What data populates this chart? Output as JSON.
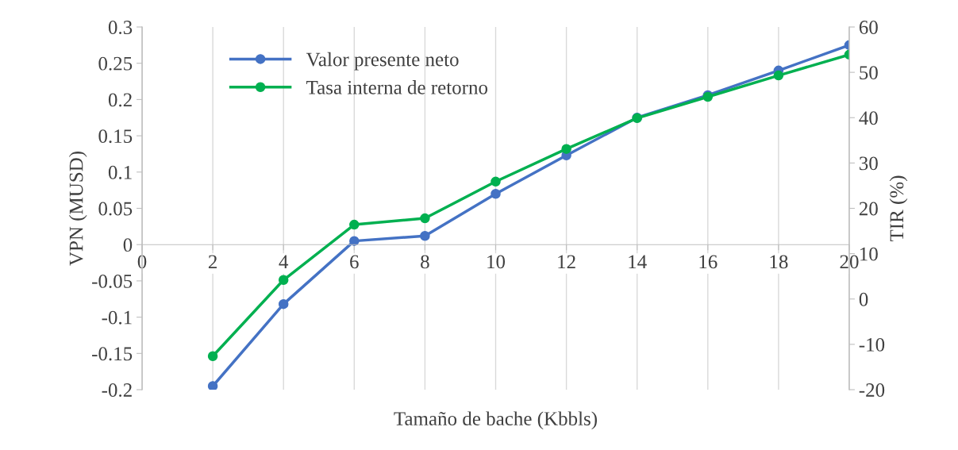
{
  "chart_data": {
    "type": "line",
    "xlabel": "Tamaño de bache (Kbbls)",
    "ylabel": "VPN (MUSD)",
    "y2label": "TIR (%)",
    "x": [
      2,
      4,
      6,
      8,
      10,
      12,
      14,
      16,
      18,
      20
    ],
    "series": [
      {
        "name": "Valor presente neto",
        "color": "#4472c4",
        "values": [
          -0.195,
          -0.082,
          0.005,
          0.012,
          0.07,
          0.123,
          0.175,
          0.206,
          0.24,
          0.275
        ]
      },
      {
        "name": "Tasa interna de retorno",
        "color": "#00b050",
        "axis": "y2",
        "values": [
          -12.6,
          4.2,
          16.4,
          17.8,
          25.9,
          33.1,
          39.9,
          44.6,
          49.3,
          53.9
        ]
      }
    ],
    "xlim": [
      0,
      20
    ],
    "xticks": [
      0,
      2,
      4,
      6,
      8,
      10,
      12,
      14,
      16,
      18,
      20
    ],
    "ylim": [
      -0.2,
      0.3
    ],
    "yticks": [
      -0.2,
      -0.15,
      -0.1,
      -0.05,
      0,
      0.05,
      0.1,
      0.15,
      0.2,
      0.25,
      0.3
    ],
    "y2lim": [
      -20,
      60
    ],
    "y2ticks": [
      -20,
      -10,
      0,
      10,
      20,
      30,
      40,
      50,
      60
    ],
    "grid": "x",
    "legend": "top left",
    "marker": "circle",
    "line_style": "solid"
  }
}
